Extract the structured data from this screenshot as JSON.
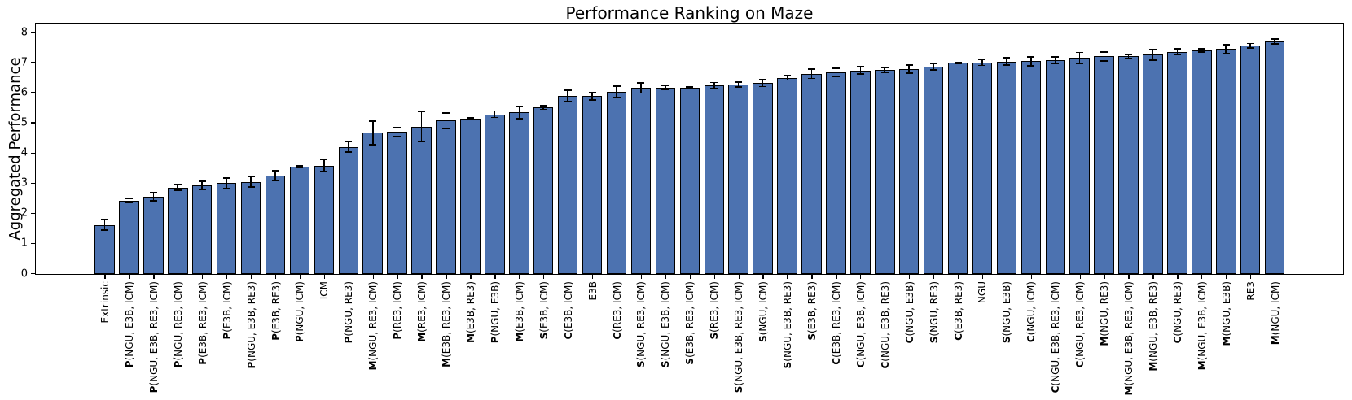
{
  "chart_data": {
    "type": "bar",
    "title": "Performance Ranking on Maze",
    "xlabel": "",
    "ylabel": "Aggregated Performance",
    "ylim": [
      0,
      8.3
    ],
    "yticks": [
      0,
      1,
      2,
      3,
      4,
      5,
      6,
      7,
      8
    ],
    "grid": false,
    "legend": null,
    "bar_color": "#4C72B0",
    "bar_edge_color": "#000000",
    "error_bar_color": "#000000",
    "categories": [
      "Extrinsic",
      "P(NGU, E3B, ICM)",
      "P(NGU, E3B, RE3, ICM)",
      "P(NGU, RE3, ICM)",
      "P(E3B, RE3, ICM)",
      "P(E3B, ICM)",
      "P(NGU, E3B, RE3)",
      "P(E3B, RE3)",
      "P(NGU, ICM)",
      "ICM",
      "P(NGU, RE3)",
      "M(NGU, RE3, ICM)",
      "P(RE3, ICM)",
      "M(RE3, ICM)",
      "M(E3B, RE3, ICM)",
      "M(E3B, RE3)",
      "P(NGU, E3B)",
      "M(E3B, ICM)",
      "S(E3B, ICM)",
      "C(E3B, ICM)",
      "E3B",
      "C(RE3, ICM)",
      "S(NGU, RE3, ICM)",
      "S(NGU, E3B, ICM)",
      "S(E3B, RE3, ICM)",
      "S(RE3, ICM)",
      "S(NGU, E3B, RE3, ICM)",
      "S(NGU, ICM)",
      "S(NGU, E3B, RE3)",
      "S(E3B, RE3)",
      "C(E3B, RE3, ICM)",
      "C(NGU, E3B, ICM)",
      "C(NGU, E3B, RE3)",
      "C(NGU, E3B)",
      "S(NGU, RE3)",
      "C(E3B, RE3)",
      "NGU",
      "S(NGU, E3B)",
      "C(NGU, ICM)",
      "C(NGU, E3B, RE3, ICM)",
      "C(NGU, RE3, ICM)",
      "M(NGU, RE3)",
      "M(NGU, E3B, RE3, ICM)",
      "M(NGU, E3B, RE3)",
      "C(NGU, RE3)",
      "M(NGU, E3B, ICM)",
      "M(NGU, E3B)",
      "RE3",
      "M(NGU, ICM)"
    ],
    "values": [
      1.63,
      2.44,
      2.57,
      2.87,
      2.94,
      3.02,
      3.05,
      3.26,
      3.56,
      3.6,
      4.22,
      4.68,
      4.72,
      4.89,
      5.09,
      5.15,
      5.3,
      5.36,
      5.52,
      5.9,
      5.9,
      6.04,
      6.17,
      6.18,
      6.18,
      6.25,
      6.29,
      6.33,
      6.51,
      6.64,
      6.68,
      6.75,
      6.77,
      6.8,
      6.87,
      7.0,
      7.02,
      7.05,
      7.06,
      7.09,
      7.17,
      7.22,
      7.22,
      7.28,
      7.37,
      7.42,
      7.46,
      7.57,
      7.72
    ],
    "errors": [
      0.17,
      0.06,
      0.14,
      0.1,
      0.13,
      0.17,
      0.17,
      0.17,
      0.03,
      0.2,
      0.17,
      0.39,
      0.15,
      0.5,
      0.26,
      0.03,
      0.11,
      0.21,
      0.06,
      0.19,
      0.13,
      0.19,
      0.17,
      0.07,
      0.02,
      0.1,
      0.08,
      0.11,
      0.08,
      0.15,
      0.14,
      0.12,
      0.08,
      0.13,
      0.1,
      0.03,
      0.1,
      0.12,
      0.15,
      0.12,
      0.18,
      0.15,
      0.07,
      0.18,
      0.1,
      0.06,
      0.14,
      0.08,
      0.08
    ],
    "bold_prefix_letters": [
      "P",
      "M",
      "S",
      "C"
    ]
  }
}
